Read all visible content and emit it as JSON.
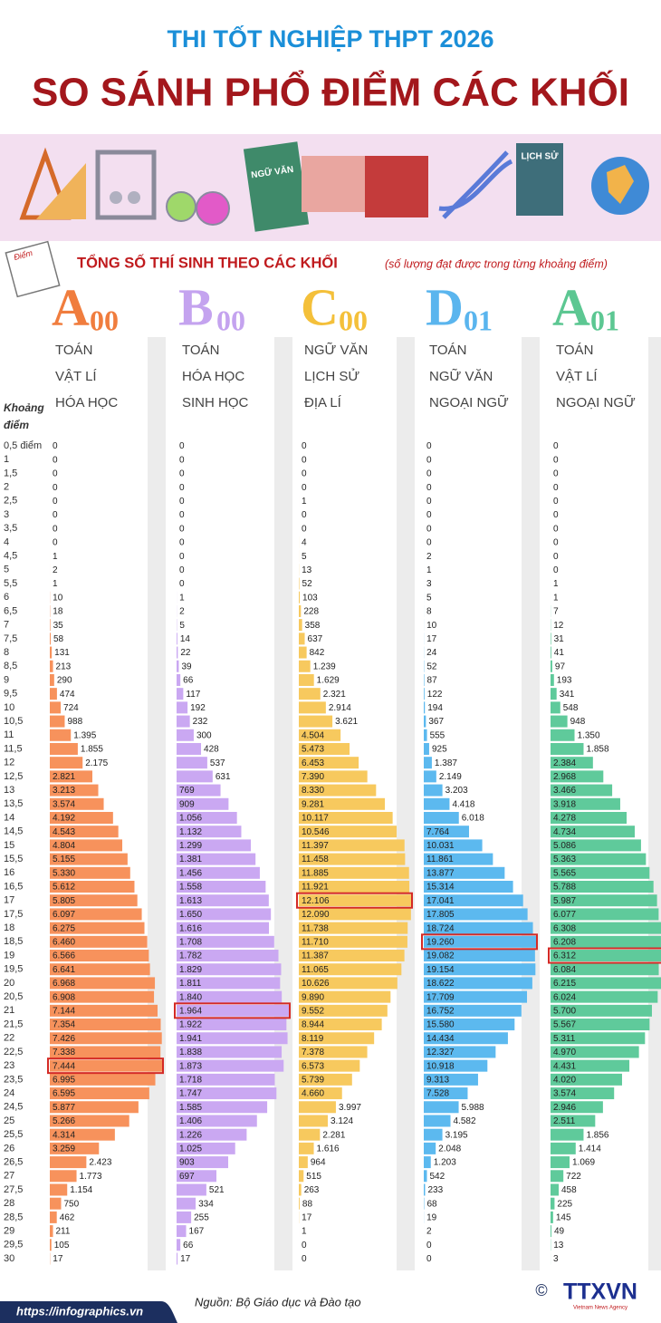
{
  "header": {
    "title": "THI TỐT NGHIỆP THPT 2026",
    "headline": "SO SÁNH PHỔ ĐIỂM CÁC KHỐI"
  },
  "banner": {
    "book_labels": [
      "NGỮ VĂN",
      "LỊCH SỬ"
    ],
    "paper_label": "Điểm"
  },
  "subtitle": {
    "main": "TỔNG SỐ THÍ SINH THEO CÁC KHỐI",
    "note": "(số lượng đạt được trong từng khoảng điểm)"
  },
  "score_axis": {
    "title": [
      "Khoảng",
      "điểm"
    ],
    "categories": [
      "0,5 điểm",
      "1",
      "1,5",
      "2",
      "2,5",
      "3",
      "3,5",
      "4",
      "4,5",
      "5",
      "5,5",
      "6",
      "6,5",
      "7",
      "7,5",
      "8",
      "8,5",
      "9",
      "9,5",
      "10",
      "10,5",
      "11",
      "11,5",
      "12",
      "12,5",
      "13",
      "13,5",
      "14",
      "14,5",
      "15",
      "15,5",
      "16",
      "16,5",
      "17",
      "17,5",
      "18",
      "18,5",
      "19",
      "19,5",
      "20",
      "20,5",
      "21",
      "21,5",
      "22",
      "22,5",
      "23",
      "23,5",
      "24",
      "24,5",
      "25",
      "25,5",
      "26",
      "26,5",
      "27",
      "27,5",
      "28",
      "28,5",
      "29",
      "29,5",
      "30"
    ]
  },
  "chart_data": [
    {
      "type": "bar",
      "letter": "A",
      "number": "00",
      "subjects": [
        "TOÁN",
        "VẬT LÍ",
        "HÓA HỌC"
      ],
      "color": "#f7925c",
      "title_color": "#f07d3e",
      "values": [
        0,
        0,
        0,
        0,
        0,
        0,
        0,
        0,
        1,
        2,
        1,
        10,
        18,
        35,
        58,
        131,
        213,
        290,
        474,
        724,
        988,
        1395,
        1855,
        2175,
        2821,
        3213,
        3574,
        4192,
        4543,
        4804,
        5155,
        5330,
        5612,
        5805,
        6097,
        6275,
        6460,
        6566,
        6641,
        6968,
        6908,
        7144,
        7354,
        7426,
        7338,
        7444,
        6995,
        6595,
        5877,
        5266,
        4314,
        3259,
        2423,
        1773,
        1154,
        750,
        462,
        211,
        105,
        17
      ],
      "value_labels": [
        "0",
        "0",
        "0",
        "0",
        "0",
        "0",
        "0",
        "0",
        "1",
        "2",
        "1",
        "10",
        "18",
        "35",
        "58",
        "131",
        "213",
        "290",
        "474",
        "724",
        "988",
        "1.395",
        "1.855",
        "2.175",
        "2.821",
        "3.213",
        "3.574",
        "4.192",
        "4.543",
        "4.804",
        "5.155",
        "5.330",
        "5.612",
        "5.805",
        "6.097",
        "6.275",
        "6.460",
        "6.566",
        "6.641",
        "6.968",
        "6.908",
        "7.144",
        "7.354",
        "7.426",
        "7.338",
        "7.444",
        "6.995",
        "6.595",
        "5.877",
        "5.266",
        "4.314",
        "3.259",
        "2.423",
        "1.773",
        "1.154",
        "750",
        "462",
        "211",
        "105",
        "17"
      ]
    },
    {
      "type": "bar",
      "letter": "B",
      "number": "00",
      "subjects": [
        "TOÁN",
        "HÓA HỌC",
        "SINH HỌC"
      ],
      "color": "#caa8f2",
      "title_color": "#c4a3ef",
      "values": [
        0,
        0,
        0,
        0,
        0,
        0,
        0,
        0,
        0,
        0,
        0,
        1,
        2,
        5,
        14,
        22,
        39,
        66,
        117,
        192,
        232,
        300,
        428,
        537,
        631,
        769,
        909,
        1056,
        1132,
        1299,
        1381,
        1456,
        1558,
        1613,
        1650,
        1616,
        1708,
        1782,
        1829,
        1811,
        1840,
        1964,
        1922,
        1941,
        1838,
        1873,
        1718,
        1747,
        1585,
        1406,
        1226,
        1025,
        903,
        697,
        521,
        334,
        255,
        167,
        66,
        17
      ],
      "value_labels": [
        "0",
        "0",
        "0",
        "0",
        "0",
        "0",
        "0",
        "0",
        "0",
        "0",
        "0",
        "1",
        "2",
        "5",
        "14",
        "22",
        "39",
        "66",
        "117",
        "192",
        "232",
        "300",
        "428",
        "537",
        "631",
        "769",
        "909",
        "1.056",
        "1.132",
        "1.299",
        "1.381",
        "1.456",
        "1.558",
        "1.613",
        "1.650",
        "1.616",
        "1.708",
        "1.782",
        "1.829",
        "1.811",
        "1.840",
        "1.964",
        "1.922",
        "1.941",
        "1.838",
        "1.873",
        "1.718",
        "1.747",
        "1.585",
        "1.406",
        "1.226",
        "1.025",
        "903",
        "697",
        "521",
        "334",
        "255",
        "167",
        "66",
        "17"
      ]
    },
    {
      "type": "bar",
      "letter": "C",
      "number": "00",
      "subjects": [
        "NGỮ VĂN",
        "LỊCH SỬ",
        "ĐỊA LÍ"
      ],
      "color": "#f7c95e",
      "title_color": "#f4c03a",
      "values": [
        0,
        0,
        0,
        0,
        1,
        0,
        0,
        4,
        5,
        13,
        52,
        103,
        228,
        358,
        637,
        842,
        1239,
        1629,
        2321,
        2914,
        3621,
        4504,
        5473,
        6453,
        7390,
        8330,
        9281,
        10117,
        10546,
        11397,
        11458,
        11885,
        11921,
        12106,
        12090,
        11738,
        11710,
        11387,
        11065,
        10626,
        9890,
        9552,
        8944,
        8119,
        7378,
        6573,
        5739,
        4660,
        3997,
        3124,
        2281,
        1616,
        964,
        515,
        263,
        88,
        17,
        1,
        0,
        0
      ],
      "value_labels": [
        "0",
        "0",
        "0",
        "0",
        "1",
        "0",
        "0",
        "4",
        "5",
        "13",
        "52",
        "103",
        "228",
        "358",
        "637",
        "842",
        "1.239",
        "1.629",
        "2.321",
        "2.914",
        "3.621",
        "4.504",
        "5.473",
        "6.453",
        "7.390",
        "8.330",
        "9.281",
        "10.117",
        "10.546",
        "11.397",
        "11.458",
        "11.885",
        "11.921",
        "12.106",
        "12.090",
        "11.738",
        "11.710",
        "11.387",
        "11.065",
        "10.626",
        "9.890",
        "9.552",
        "8.944",
        "8.119",
        "7.378",
        "6.573",
        "5.739",
        "4.660",
        "3.997",
        "3.124",
        "2.281",
        "1.616",
        "964",
        "515",
        "263",
        "88",
        "17",
        "1",
        "0",
        "0"
      ]
    },
    {
      "type": "bar",
      "letter": "D",
      "number": "01",
      "subjects": [
        "TOÁN",
        "NGỮ VĂN",
        "NGOẠI NGỮ"
      ],
      "color": "#5cb9ef",
      "title_color": "#5ab5ee",
      "values": [
        0,
        0,
        0,
        0,
        0,
        0,
        0,
        0,
        2,
        1,
        3,
        5,
        8,
        10,
        17,
        24,
        52,
        87,
        122,
        194,
        367,
        555,
        925,
        1387,
        2149,
        3203,
        4418,
        6018,
        7764,
        10031,
        11861,
        13877,
        15314,
        17041,
        17805,
        18724,
        19260,
        19082,
        19154,
        18622,
        17709,
        16752,
        15580,
        14434,
        12327,
        10918,
        9313,
        7528,
        5988,
        4582,
        3195,
        2048,
        1203,
        542,
        233,
        68,
        19,
        2,
        0,
        0
      ],
      "value_labels": [
        "0",
        "0",
        "0",
        "0",
        "0",
        "0",
        "0",
        "0",
        "2",
        "1",
        "3",
        "5",
        "8",
        "10",
        "17",
        "24",
        "52",
        "87",
        "122",
        "194",
        "367",
        "555",
        "925",
        "1.387",
        "2.149",
        "3.203",
        "4.418",
        "6.018",
        "7.764",
        "10.031",
        "11.861",
        "13.877",
        "15.314",
        "17.041",
        "17.805",
        "18.724",
        "19.260",
        "19.082",
        "19.154",
        "18.622",
        "17.709",
        "16.752",
        "15.580",
        "14.434",
        "12.327",
        "10.918",
        "9.313",
        "7.528",
        "5.988",
        "4.582",
        "3.195",
        "2.048",
        "1.203",
        "542",
        "233",
        "68",
        "19",
        "2",
        "0",
        "0"
      ]
    },
    {
      "type": "bar",
      "letter": "A",
      "number": "01",
      "subjects": [
        "TOÁN",
        "VẬT LÍ",
        "NGOẠI NGỮ"
      ],
      "color": "#5fca9b",
      "title_color": "#5cc792",
      "values": [
        0,
        0,
        0,
        0,
        0,
        0,
        0,
        0,
        0,
        0,
        1,
        1,
        7,
        12,
        31,
        41,
        97,
        193,
        341,
        548,
        948,
        1350,
        1858,
        2384,
        2968,
        3466,
        3918,
        4278,
        4734,
        5086,
        5363,
        5565,
        5788,
        5987,
        6077,
        6308,
        6208,
        6312,
        6084,
        6215,
        6024,
        5700,
        5567,
        5311,
        4970,
        4431,
        4020,
        3574,
        2946,
        2511,
        1856,
        1414,
        1069,
        722,
        458,
        225,
        145,
        49,
        13,
        3
      ],
      "value_labels": [
        "0",
        "0",
        "0",
        "0",
        "0",
        "0",
        "0",
        "0",
        "0",
        "0",
        "1",
        "1",
        "7",
        "12",
        "31",
        "41",
        "97",
        "193",
        "341",
        "548",
        "948",
        "1.350",
        "1.858",
        "2.384",
        "2.968",
        "3.466",
        "3.918",
        "4.278",
        "4.734",
        "5.086",
        "5.363",
        "5.565",
        "5.788",
        "5.987",
        "6.077",
        "6.308",
        "6.208",
        "6.312",
        "6.084",
        "6.215",
        "6.024",
        "5.700",
        "5.567",
        "5.311",
        "4.970",
        "4.431",
        "4.020",
        "3.574",
        "2.946",
        "2.511",
        "1.856",
        "1.414",
        "1.069",
        "722",
        "458",
        "225",
        "145",
        "49",
        "13",
        "3"
      ]
    }
  ],
  "footer": {
    "url": "https://infographics.vn",
    "source": "Nguồn: Bộ Giáo dục và Đào tạo",
    "logo": "TTXVN",
    "logo_sub": "Vietnam News Agency",
    "copyright": "©"
  }
}
